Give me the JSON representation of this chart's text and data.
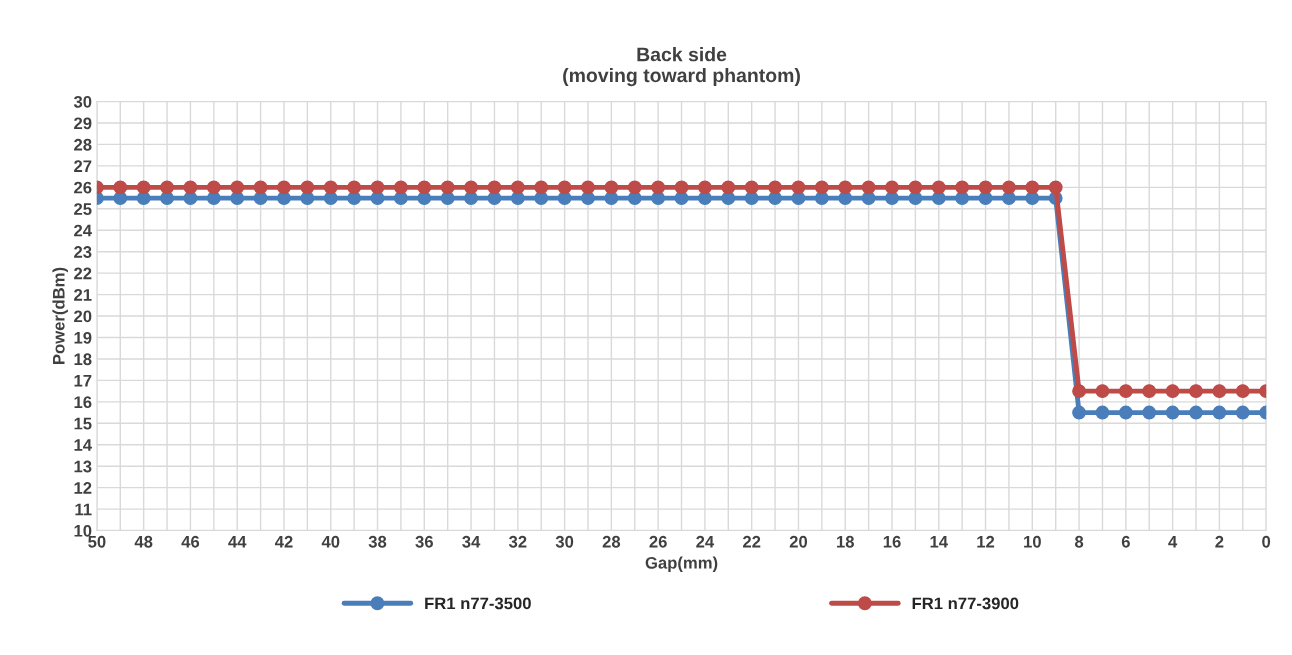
{
  "chart_data": {
    "type": "line",
    "title": "Back side\n(moving toward phantom)",
    "xlabel": "Gap(mm)",
    "ylabel": "Power(dBm)",
    "x": [
      50,
      49,
      48,
      47,
      46,
      45,
      44,
      43,
      42,
      41,
      40,
      39,
      38,
      37,
      36,
      35,
      34,
      33,
      32,
      31,
      30,
      29,
      28,
      27,
      26,
      25,
      24,
      23,
      22,
      21,
      20,
      19,
      18,
      17,
      16,
      15,
      14,
      13,
      12,
      11,
      10,
      9,
      8,
      7,
      6,
      5,
      4,
      3,
      2,
      1,
      0
    ],
    "series": [
      {
        "name": "FR1 n77-3500",
        "color": "#4a7ebb",
        "values": [
          25.5,
          25.5,
          25.5,
          25.5,
          25.5,
          25.5,
          25.5,
          25.5,
          25.5,
          25.5,
          25.5,
          25.5,
          25.5,
          25.5,
          25.5,
          25.5,
          25.5,
          25.5,
          25.5,
          25.5,
          25.5,
          25.5,
          25.5,
          25.5,
          25.5,
          25.5,
          25.5,
          25.5,
          25.5,
          25.5,
          25.5,
          25.5,
          25.5,
          25.5,
          25.5,
          25.5,
          25.5,
          25.5,
          25.5,
          25.5,
          25.5,
          25.5,
          15.5,
          15.5,
          15.5,
          15.5,
          15.5,
          15.5,
          15.5,
          15.5,
          15.5
        ]
      },
      {
        "name": "FR1 n77-3900",
        "color": "#be4b48",
        "values": [
          26,
          26,
          26,
          26,
          26,
          26,
          26,
          26,
          26,
          26,
          26,
          26,
          26,
          26,
          26,
          26,
          26,
          26,
          26,
          26,
          26,
          26,
          26,
          26,
          26,
          26,
          26,
          26,
          26,
          26,
          26,
          26,
          26,
          26,
          26,
          26,
          26,
          26,
          26,
          26,
          26,
          26,
          16.5,
          16.5,
          16.5,
          16.5,
          16.5,
          16.5,
          16.5,
          16.5,
          16.5
        ]
      }
    ],
    "xlim": [
      50,
      0
    ],
    "xticks": [
      50,
      {
        "value": 49,
        "label": null
      },
      48,
      {
        "value": 47,
        "label": null
      },
      46,
      {
        "value": 45,
        "label": null
      },
      44,
      {
        "value": 43,
        "label": null
      },
      42,
      {
        "value": 41,
        "label": null
      },
      40,
      {
        "value": 39,
        "label": null
      },
      38,
      {
        "value": 37,
        "label": null
      },
      36,
      {
        "value": 35,
        "label": null
      },
      34,
      {
        "value": 33,
        "label": null
      },
      32,
      {
        "value": 31,
        "label": null
      },
      30,
      {
        "value": 29,
        "label": null
      },
      28,
      {
        "value": 27,
        "label": null
      },
      26,
      {
        "value": 25,
        "label": null
      },
      24,
      {
        "value": 23,
        "label": null
      },
      22,
      {
        "value": 21,
        "label": null
      },
      20,
      {
        "value": 19,
        "label": null
      },
      18,
      {
        "value": 17,
        "label": null
      },
      16,
      {
        "value": 15,
        "label": null
      },
      14,
      {
        "value": 13,
        "label": null
      },
      12,
      {
        "value": 11,
        "label": null
      },
      10,
      {
        "value": 9,
        "label": null
      },
      8,
      {
        "value": 7,
        "label": null
      },
      6,
      {
        "value": 5,
        "label": null
      },
      4,
      {
        "value": 3,
        "label": null
      },
      2,
      {
        "value": 1,
        "label": null
      },
      0
    ],
    "ylim": [
      10,
      30
    ],
    "yticks": [
      10,
      11,
      12,
      13,
      14,
      15,
      16,
      17,
      18,
      19,
      20,
      21,
      22,
      23,
      24,
      25,
      26,
      27,
      28,
      29,
      30
    ],
    "grid": true,
    "legend": "bottom",
    "marker": "circle",
    "line_style": "solid"
  }
}
